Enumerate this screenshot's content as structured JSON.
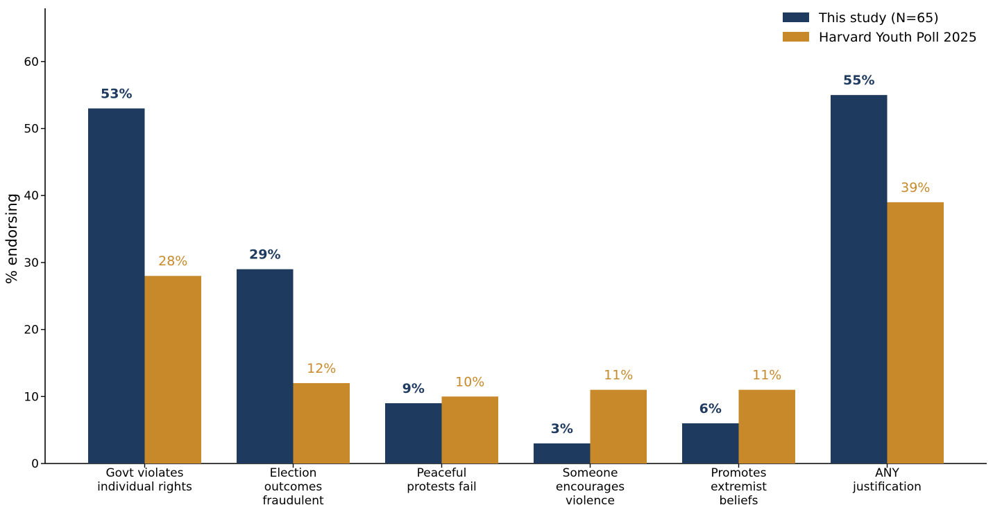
{
  "chart_data": {
    "type": "bar",
    "title": "",
    "xlabel": "",
    "ylabel": "% endorsing",
    "ylim": [
      0,
      68
    ],
    "yticks": [
      0,
      10,
      20,
      30,
      40,
      50,
      60
    ],
    "grid": false,
    "legend_position": "top-right",
    "categories": [
      [
        "Govt violates",
        "individual rights"
      ],
      [
        "Election",
        "outcomes",
        "fraudulent"
      ],
      [
        "Peaceful",
        "protests fail"
      ],
      [
        "Someone",
        "encourages",
        "violence"
      ],
      [
        "Promotes",
        "extremist",
        "beliefs"
      ],
      [
        "ANY",
        "justification"
      ]
    ],
    "series": [
      {
        "name": "This study (N=65)",
        "color": "#1f3a5f",
        "label_style": "bold",
        "values": [
          53,
          29,
          9,
          3,
          6,
          55
        ],
        "data_labels": [
          "53%",
          "29%",
          "9%",
          "3%",
          "6%",
          "55%"
        ]
      },
      {
        "name": "Harvard Youth Poll 2025",
        "color": "#c8892b",
        "label_style": "normal",
        "values": [
          28,
          12,
          10,
          11,
          11,
          39
        ],
        "data_labels": [
          "28%",
          "12%",
          "10%",
          "11%",
          "11%",
          "39%"
        ]
      }
    ]
  }
}
